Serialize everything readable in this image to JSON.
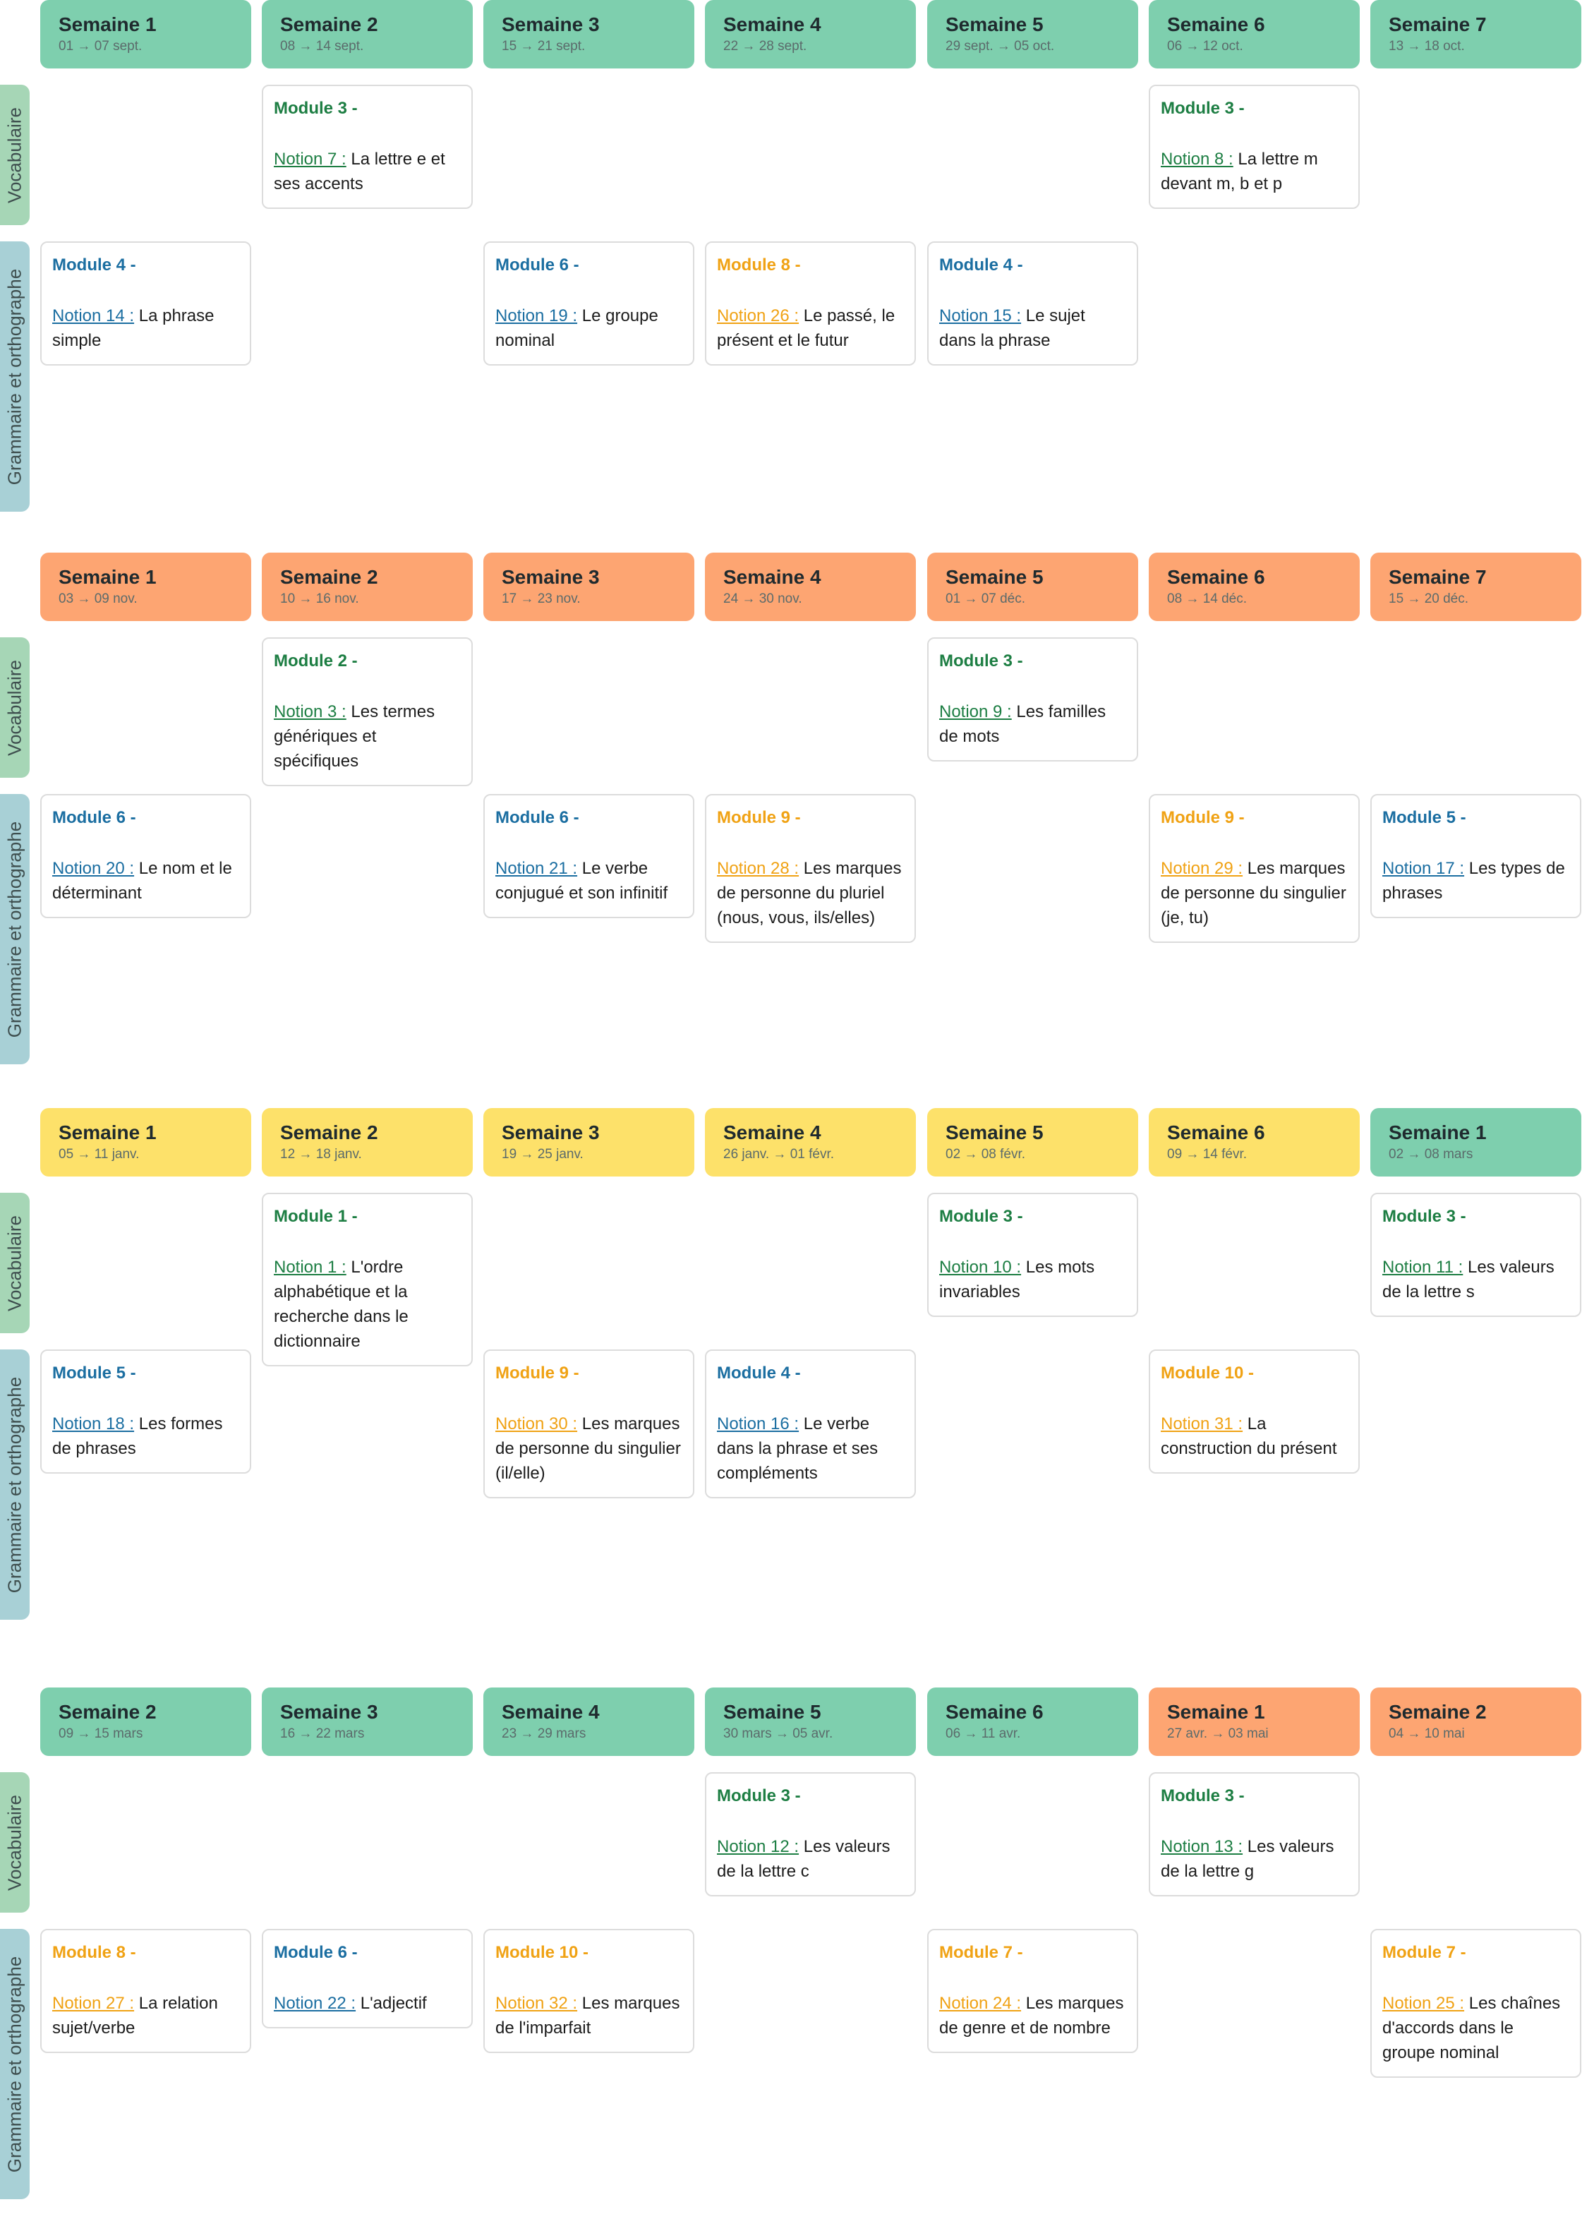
{
  "colors": {
    "header_green": "#7ecfae",
    "header_orange": "#fda572",
    "header_yellow": "#fde16a",
    "side_vocabulaire": "#a6d6b6",
    "side_grammaire": "#a8d0d6",
    "module_green": "#1d7e43",
    "module_blue": "#1b6ea1",
    "module_orange": "#f0a214"
  },
  "side_labels": {
    "vocabulaire": "Vocabulaire",
    "grammaire": "Grammaire et orthographe"
  },
  "periods": [
    {
      "headers": [
        {
          "title": "Semaine 1",
          "dates": "01 → 07 sept.",
          "color": "green"
        },
        {
          "title": "Semaine 2",
          "dates": "08 → 14 sept.",
          "color": "green"
        },
        {
          "title": "Semaine 3",
          "dates": "15 → 21 sept.",
          "color": "green"
        },
        {
          "title": "Semaine 4",
          "dates": "22 → 28 sept.",
          "color": "green"
        },
        {
          "title": "Semaine 5",
          "dates": "29 sept. → 05 oct.",
          "color": "green"
        },
        {
          "title": "Semaine 6",
          "dates": "06 → 12 oct.",
          "color": "green"
        },
        {
          "title": "Semaine 7",
          "dates": "13 → 18 oct.",
          "color": "green"
        }
      ],
      "vocab": [
        {
          "col": 1,
          "module": "Module 3 -",
          "notion": "Notion 7 :",
          "text": "La lettre e et ses accents",
          "color": "green"
        },
        {
          "col": 5,
          "module": "Module 3 -",
          "notion": "Notion 8 :",
          "text": "La lettre m devant m, b et p",
          "color": "green"
        }
      ],
      "grammar": [
        {
          "col": 0,
          "module": "Module 4 -",
          "notion": "Notion 14 :",
          "text": "La phrase simple",
          "color": "blue"
        },
        {
          "col": 2,
          "module": "Module 6 -",
          "notion": "Notion 19 :",
          "text": "Le groupe nominal",
          "color": "blue"
        },
        {
          "col": 3,
          "module": "Module 8 -",
          "notion": "Notion 26 :",
          "text": "Le passé, le présent et le futur",
          "color": "orange"
        },
        {
          "col": 4,
          "module": "Module 4 -",
          "notion": "Notion 15 :",
          "text": "Le sujet dans la phrase",
          "color": "blue"
        }
      ]
    },
    {
      "headers": [
        {
          "title": "Semaine 1",
          "dates": "03 → 09 nov.",
          "color": "orange"
        },
        {
          "title": "Semaine 2",
          "dates": "10 → 16 nov.",
          "color": "orange"
        },
        {
          "title": "Semaine 3",
          "dates": "17 → 23 nov.",
          "color": "orange"
        },
        {
          "title": "Semaine 4",
          "dates": "24 → 30 nov.",
          "color": "orange"
        },
        {
          "title": "Semaine 5",
          "dates": "01 → 07 déc.",
          "color": "orange"
        },
        {
          "title": "Semaine 6",
          "dates": "08 → 14 déc.",
          "color": "orange"
        },
        {
          "title": "Semaine 7",
          "dates": "15 → 20 déc.",
          "color": "orange"
        }
      ],
      "vocab": [
        {
          "col": 1,
          "module": "Module 2 -",
          "notion": "Notion 3 :",
          "text": "Les termes génériques et spécifiques",
          "color": "green"
        },
        {
          "col": 4,
          "module": "Module 3 -",
          "notion": "Notion 9 :",
          "text": "Les familles de mots",
          "color": "green"
        }
      ],
      "grammar": [
        {
          "col": 0,
          "module": "Module 6 -",
          "notion": "Notion 20 :",
          "text": "Le nom et le déterminant",
          "color": "blue"
        },
        {
          "col": 2,
          "module": "Module 6 -",
          "notion": "Notion 21 :",
          "text": "Le verbe conjugué et son infinitif",
          "color": "blue"
        },
        {
          "col": 3,
          "module": "Module 9 -",
          "notion": "Notion 28 :",
          "text": "Les marques de personne du pluriel (nous, vous, ils/elles)",
          "color": "orange"
        },
        {
          "col": 5,
          "module": "Module 9 -",
          "notion": "Notion 29 :",
          "text": "Les marques de personne du singulier (je, tu)",
          "color": "orange"
        },
        {
          "col": 6,
          "module": "Module 5 -",
          "notion": "Notion 17 :",
          "text": "Les types de phrases",
          "color": "blue"
        }
      ]
    },
    {
      "headers": [
        {
          "title": "Semaine 1",
          "dates": "05 → 11 janv.",
          "color": "yellow"
        },
        {
          "title": "Semaine 2",
          "dates": "12 → 18 janv.",
          "color": "yellow"
        },
        {
          "title": "Semaine 3",
          "dates": "19 → 25 janv.",
          "color": "yellow"
        },
        {
          "title": "Semaine 4",
          "dates": "26 janv. → 01 févr.",
          "color": "yellow"
        },
        {
          "title": "Semaine 5",
          "dates": "02 → 08 févr.",
          "color": "yellow"
        },
        {
          "title": "Semaine 6",
          "dates": "09 → 14 févr.",
          "color": "yellow"
        },
        {
          "title": "Semaine 1",
          "dates": "02 → 08 mars",
          "color": "green"
        }
      ],
      "vocab": [
        {
          "col": 1,
          "module": "Module 1 -",
          "notion": "Notion 1 :",
          "text": "L'ordre alphabétique et la recherche dans le dictionnaire",
          "color": "green"
        },
        {
          "col": 4,
          "module": "Module 3 -",
          "notion": "Notion 10 :",
          "text": "Les mots invariables",
          "color": "green"
        },
        {
          "col": 6,
          "module": "Module 3 -",
          "notion": "Notion 11 :",
          "text": "Les valeurs de la lettre s",
          "color": "green"
        }
      ],
      "grammar": [
        {
          "col": 0,
          "module": "Module 5 -",
          "notion": "Notion 18 :",
          "text": "Les formes de phrases",
          "color": "blue"
        },
        {
          "col": 2,
          "module": "Module 9 -",
          "notion": "Notion 30 :",
          "text": "Les marques de personne du singulier (il/elle)",
          "color": "orange"
        },
        {
          "col": 3,
          "module": "Module 4 -",
          "notion": "Notion 16 :",
          "text": "Le verbe dans la phrase et ses compléments",
          "color": "blue"
        },
        {
          "col": 5,
          "module": "Module 10 -",
          "notion": "Notion 31 :",
          "text": "La construction du présent",
          "color": "orange"
        }
      ]
    },
    {
      "headers": [
        {
          "title": "Semaine 2",
          "dates": "09 → 15 mars",
          "color": "green"
        },
        {
          "title": "Semaine 3",
          "dates": "16 → 22 mars",
          "color": "green"
        },
        {
          "title": "Semaine 4",
          "dates": "23 → 29 mars",
          "color": "green"
        },
        {
          "title": "Semaine 5",
          "dates": "30 mars → 05 avr.",
          "color": "green"
        },
        {
          "title": "Semaine 6",
          "dates": "06 → 11 avr.",
          "color": "green"
        },
        {
          "title": "Semaine 1",
          "dates": "27 avr. → 03 mai",
          "color": "orange"
        },
        {
          "title": "Semaine 2",
          "dates": "04 → 10 mai",
          "color": "orange"
        }
      ],
      "vocab": [
        {
          "col": 3,
          "module": "Module 3 -",
          "notion": "Notion 12 :",
          "text": "Les valeurs de la lettre c",
          "color": "green"
        },
        {
          "col": 5,
          "module": "Module 3 -",
          "notion": "Notion 13 :",
          "text": "Les valeurs de la lettre g",
          "color": "green"
        }
      ],
      "grammar": [
        {
          "col": 0,
          "module": "Module 8 -",
          "notion": "Notion 27 :",
          "text": "La relation sujet/verbe",
          "color": "orange"
        },
        {
          "col": 1,
          "module": "Module 6 -",
          "notion": "Notion 22 :",
          "text": "L'adjectif",
          "color": "blue"
        },
        {
          "col": 2,
          "module": "Module 10 -",
          "notion": "Notion 32 :",
          "text": "Les marques de l'imparfait",
          "color": "orange"
        },
        {
          "col": 4,
          "module": "Module 7 -",
          "notion": "Notion 24 :",
          "text": "Les marques de genre et de nombre",
          "color": "orange"
        },
        {
          "col": 6,
          "module": "Module 7 -",
          "notion": "Notion 25 :",
          "text": "Les chaînes d'accords dans le groupe nominal",
          "color": "orange"
        }
      ]
    }
  ]
}
